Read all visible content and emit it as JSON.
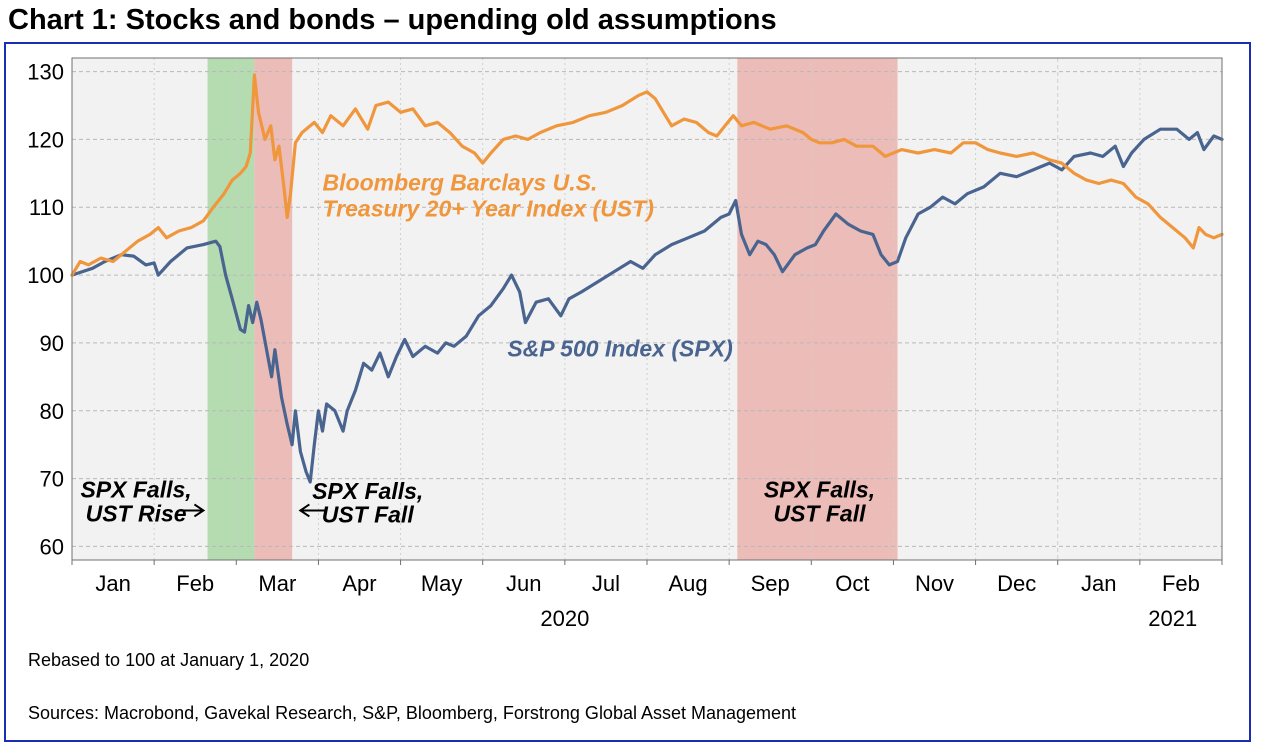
{
  "title": "Chart 1: Stocks and bonds – upending old assumptions",
  "footnote": "Rebased to 100 at January 1, 2020",
  "sources": "Sources: Macrobond, Gavekal Research, S&P, Bloomberg, Forstrong Global Asset Management",
  "colors": {
    "spx": "#4a6490",
    "ust": "#f0963c",
    "green": "#b4dcb0",
    "red": "#ecbcb8",
    "plot_bg": "#f2f2f2",
    "frame": "#1a2db3"
  },
  "chart_data": {
    "type": "line",
    "title": "Chart 1: Stocks and bonds – upending old assumptions",
    "xlabel": "",
    "ylabel": "",
    "ylim": [
      58,
      132
    ],
    "yticks": [
      60,
      70,
      80,
      90,
      100,
      110,
      120,
      130
    ],
    "xlim": [
      0,
      14
    ],
    "month_labels": [
      {
        "label": "Jan",
        "x": 0.5
      },
      {
        "label": "Feb",
        "x": 1.5
      },
      {
        "label": "Mar",
        "x": 2.5
      },
      {
        "label": "Apr",
        "x": 3.5
      },
      {
        "label": "May",
        "x": 4.5
      },
      {
        "label": "Jun",
        "x": 5.5
      },
      {
        "label": "Jul",
        "x": 6.5
      },
      {
        "label": "Aug",
        "x": 7.5
      },
      {
        "label": "Sep",
        "x": 8.5
      },
      {
        "label": "Oct",
        "x": 9.5
      },
      {
        "label": "Nov",
        "x": 10.5
      },
      {
        "label": "Dec",
        "x": 11.5
      },
      {
        "label": "Jan",
        "x": 12.5
      },
      {
        "label": "Feb",
        "x": 13.5
      }
    ],
    "year_labels": [
      {
        "label": "2020",
        "x": 6
      },
      {
        "label": "2021",
        "x": 13.4
      }
    ],
    "shaded_regions": [
      {
        "name": "green",
        "from": 1.65,
        "to": 2.22,
        "color": "#b4dcb0",
        "text": [
          "SPX Falls,",
          "UST Rise"
        ],
        "text_x": 0.78,
        "text_y": [
          67.2,
          63.7
        ],
        "arrow": "right"
      },
      {
        "name": "red-mar",
        "from": 2.22,
        "to": 2.68,
        "color": "#ecbcb8",
        "text": [
          "SPX Falls,",
          "UST Fall"
        ],
        "text_x": 3.6,
        "text_y": [
          67.0,
          63.5
        ],
        "arrow": "left"
      },
      {
        "name": "red-sep",
        "from": 8.1,
        "to": 10.05,
        "color": "#ecbcb8",
        "text": [
          "SPX Falls,",
          "UST Fall"
        ],
        "text_x": 9.1,
        "text_y": [
          67.2,
          63.7
        ],
        "arrow": "none"
      }
    ],
    "annotations": [
      {
        "name": "ust",
        "lines": [
          "Bloomberg Barclays U.S.",
          "Treasury 20+ Year Index (UST)"
        ],
        "x": 3.05,
        "y": [
          112.5,
          108.6
        ],
        "color": "#f0963c"
      },
      {
        "name": "spx",
        "lines": [
          "S&P 500 Index (SPX)"
        ],
        "x": 5.3,
        "y": [
          88.0
        ],
        "color": "#4a6490"
      }
    ],
    "series": [
      {
        "name": "S&P 500 Index (SPX)",
        "color": "#4a6490",
        "points": [
          [
            0,
            100
          ],
          [
            0.1,
            100.4
          ],
          [
            0.25,
            101
          ],
          [
            0.4,
            102
          ],
          [
            0.6,
            103
          ],
          [
            0.75,
            102.8
          ],
          [
            0.9,
            101.5
          ],
          [
            1.0,
            101.8
          ],
          [
            1.05,
            100
          ],
          [
            1.2,
            102
          ],
          [
            1.4,
            104
          ],
          [
            1.6,
            104.5
          ],
          [
            1.75,
            105
          ],
          [
            1.8,
            104.2
          ],
          [
            1.87,
            100
          ],
          [
            1.95,
            96.5
          ],
          [
            2.05,
            92
          ],
          [
            2.1,
            91.6
          ],
          [
            2.15,
            95.5
          ],
          [
            2.2,
            93
          ],
          [
            2.25,
            96
          ],
          [
            2.3,
            93.5
          ],
          [
            2.4,
            87
          ],
          [
            2.43,
            85
          ],
          [
            2.47,
            89
          ],
          [
            2.55,
            82
          ],
          [
            2.62,
            78
          ],
          [
            2.68,
            75
          ],
          [
            2.72,
            80
          ],
          [
            2.78,
            74
          ],
          [
            2.85,
            71
          ],
          [
            2.9,
            69.5
          ],
          [
            2.95,
            75
          ],
          [
            3.0,
            80
          ],
          [
            3.05,
            77
          ],
          [
            3.1,
            81
          ],
          [
            3.2,
            80
          ],
          [
            3.3,
            77
          ],
          [
            3.35,
            80
          ],
          [
            3.45,
            83
          ],
          [
            3.55,
            87
          ],
          [
            3.65,
            86
          ],
          [
            3.75,
            88.5
          ],
          [
            3.85,
            85
          ],
          [
            3.95,
            88
          ],
          [
            4.05,
            90.5
          ],
          [
            4.15,
            88
          ],
          [
            4.3,
            89.5
          ],
          [
            4.45,
            88.5
          ],
          [
            4.55,
            90
          ],
          [
            4.65,
            89.5
          ],
          [
            4.8,
            91
          ],
          [
            4.95,
            94
          ],
          [
            5.1,
            95.5
          ],
          [
            5.25,
            98
          ],
          [
            5.35,
            100
          ],
          [
            5.45,
            97.5
          ],
          [
            5.52,
            93
          ],
          [
            5.65,
            96
          ],
          [
            5.8,
            96.5
          ],
          [
            5.95,
            94
          ],
          [
            6.05,
            96.5
          ],
          [
            6.2,
            97.5
          ],
          [
            6.4,
            99
          ],
          [
            6.6,
            100.5
          ],
          [
            6.8,
            102
          ],
          [
            6.95,
            101
          ],
          [
            7.1,
            103
          ],
          [
            7.3,
            104.5
          ],
          [
            7.5,
            105.5
          ],
          [
            7.7,
            106.5
          ],
          [
            7.9,
            108.5
          ],
          [
            8.0,
            109
          ],
          [
            8.08,
            111
          ],
          [
            8.15,
            106
          ],
          [
            8.25,
            103
          ],
          [
            8.35,
            105
          ],
          [
            8.45,
            104.5
          ],
          [
            8.55,
            103
          ],
          [
            8.65,
            100.5
          ],
          [
            8.8,
            103
          ],
          [
            8.95,
            104
          ],
          [
            9.05,
            104.5
          ],
          [
            9.15,
            106.5
          ],
          [
            9.3,
            109
          ],
          [
            9.45,
            107.5
          ],
          [
            9.6,
            106.5
          ],
          [
            9.75,
            106
          ],
          [
            9.85,
            103
          ],
          [
            9.95,
            101.5
          ],
          [
            10.05,
            102
          ],
          [
            10.15,
            105.5
          ],
          [
            10.3,
            109
          ],
          [
            10.45,
            110
          ],
          [
            10.6,
            111.5
          ],
          [
            10.75,
            110.5
          ],
          [
            10.9,
            112
          ],
          [
            11.1,
            113
          ],
          [
            11.3,
            115
          ],
          [
            11.5,
            114.5
          ],
          [
            11.7,
            115.5
          ],
          [
            11.9,
            116.5
          ],
          [
            12.05,
            115.5
          ],
          [
            12.2,
            117.5
          ],
          [
            12.4,
            118
          ],
          [
            12.55,
            117.5
          ],
          [
            12.7,
            119
          ],
          [
            12.8,
            116
          ],
          [
            12.9,
            118
          ],
          [
            13.05,
            120
          ],
          [
            13.25,
            121.5
          ],
          [
            13.45,
            121.5
          ],
          [
            13.6,
            120
          ],
          [
            13.7,
            121
          ],
          [
            13.78,
            118.5
          ],
          [
            13.9,
            120.5
          ],
          [
            14.0,
            120
          ]
        ]
      },
      {
        "name": "Bloomberg Barclays U.S. Treasury 20+ Year Index (UST)",
        "color": "#f0963c",
        "points": [
          [
            0,
            100
          ],
          [
            0.1,
            102
          ],
          [
            0.2,
            101.5
          ],
          [
            0.35,
            102.5
          ],
          [
            0.5,
            102
          ],
          [
            0.65,
            103.5
          ],
          [
            0.8,
            105
          ],
          [
            0.95,
            106
          ],
          [
            1.05,
            107
          ],
          [
            1.15,
            105.5
          ],
          [
            1.3,
            106.5
          ],
          [
            1.45,
            107
          ],
          [
            1.6,
            108
          ],
          [
            1.72,
            110
          ],
          [
            1.85,
            112
          ],
          [
            1.95,
            114
          ],
          [
            2.05,
            115
          ],
          [
            2.12,
            116
          ],
          [
            2.17,
            118
          ],
          [
            2.22,
            129.5
          ],
          [
            2.27,
            124
          ],
          [
            2.35,
            120
          ],
          [
            2.42,
            122
          ],
          [
            2.47,
            117
          ],
          [
            2.52,
            119
          ],
          [
            2.58,
            113
          ],
          [
            2.62,
            108.5
          ],
          [
            2.66,
            112
          ],
          [
            2.72,
            119.5
          ],
          [
            2.8,
            121
          ],
          [
            2.95,
            122.5
          ],
          [
            3.05,
            121
          ],
          [
            3.15,
            123.5
          ],
          [
            3.3,
            122
          ],
          [
            3.45,
            124.5
          ],
          [
            3.6,
            121.5
          ],
          [
            3.7,
            125
          ],
          [
            3.85,
            125.5
          ],
          [
            4.0,
            124
          ],
          [
            4.15,
            124.5
          ],
          [
            4.3,
            122
          ],
          [
            4.45,
            122.5
          ],
          [
            4.6,
            121
          ],
          [
            4.75,
            119
          ],
          [
            4.9,
            118
          ],
          [
            5.0,
            116.5
          ],
          [
            5.1,
            118
          ],
          [
            5.25,
            120
          ],
          [
            5.4,
            120.5
          ],
          [
            5.55,
            120
          ],
          [
            5.7,
            121
          ],
          [
            5.9,
            122
          ],
          [
            6.1,
            122.5
          ],
          [
            6.3,
            123.5
          ],
          [
            6.5,
            124
          ],
          [
            6.7,
            125
          ],
          [
            6.9,
            126.5
          ],
          [
            7.0,
            127
          ],
          [
            7.1,
            126
          ],
          [
            7.2,
            124
          ],
          [
            7.3,
            122
          ],
          [
            7.45,
            123
          ],
          [
            7.6,
            122.5
          ],
          [
            7.75,
            121
          ],
          [
            7.85,
            120.5
          ],
          [
            7.95,
            122
          ],
          [
            8.05,
            123.5
          ],
          [
            8.15,
            122
          ],
          [
            8.3,
            122.5
          ],
          [
            8.5,
            121.5
          ],
          [
            8.7,
            122
          ],
          [
            8.9,
            121
          ],
          [
            9.0,
            120
          ],
          [
            9.1,
            119.5
          ],
          [
            9.25,
            119.5
          ],
          [
            9.4,
            120
          ],
          [
            9.55,
            119
          ],
          [
            9.75,
            119
          ],
          [
            9.9,
            117.5
          ],
          [
            10.1,
            118.5
          ],
          [
            10.3,
            118
          ],
          [
            10.5,
            118.5
          ],
          [
            10.7,
            118
          ],
          [
            10.85,
            119.5
          ],
          [
            11.0,
            119.5
          ],
          [
            11.15,
            118.5
          ],
          [
            11.3,
            118
          ],
          [
            11.5,
            117.5
          ],
          [
            11.7,
            118
          ],
          [
            11.9,
            117
          ],
          [
            12.05,
            116.5
          ],
          [
            12.2,
            115
          ],
          [
            12.35,
            114
          ],
          [
            12.5,
            113.5
          ],
          [
            12.65,
            114
          ],
          [
            12.8,
            113.5
          ],
          [
            12.95,
            111.5
          ],
          [
            13.1,
            110.5
          ],
          [
            13.25,
            108.5
          ],
          [
            13.4,
            107
          ],
          [
            13.55,
            105.5
          ],
          [
            13.65,
            104
          ],
          [
            13.72,
            107
          ],
          [
            13.8,
            106
          ],
          [
            13.9,
            105.5
          ],
          [
            14.0,
            106
          ]
        ]
      }
    ]
  }
}
